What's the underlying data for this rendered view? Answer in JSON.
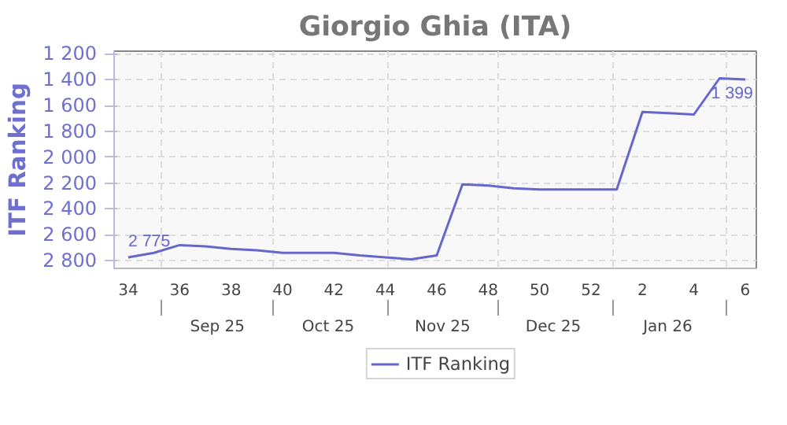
{
  "chart_data": {
    "type": "line",
    "title": "Giorgio Ghia (ITA)",
    "ylabel": "ITF Ranking",
    "categories": [
      "34",
      null,
      "36",
      null,
      "38",
      null,
      "40",
      null,
      "42",
      null,
      "44",
      null,
      "46",
      null,
      "48",
      null,
      "50",
      null,
      "52",
      null,
      "2",
      null,
      "4",
      null,
      "6"
    ],
    "series": [
      {
        "name": "ITF Ranking",
        "color": "#6666cc",
        "values": [
          2775,
          2740,
          2680,
          2690,
          2710,
          2720,
          2740,
          2740,
          2740,
          2760,
          2775,
          2790,
          2760,
          2210,
          2220,
          2240,
          2250,
          2250,
          2250,
          2250,
          1650,
          1660,
          1670,
          1390,
          1399
        ],
        "value_labels": [
          "2 775",
          null,
          null,
          null,
          null,
          null,
          null,
          null,
          null,
          null,
          null,
          null,
          null,
          null,
          null,
          null,
          null,
          null,
          null,
          null,
          null,
          null,
          null,
          null,
          "1 399"
        ]
      }
    ],
    "x2lim": [
      "2025-08-19",
      "2026-02-09"
    ],
    "x2ticks": [
      {
        "value": "2025-09-01",
        "label": null
      },
      {
        "value": "2025-09-16",
        "label": "Sep 25"
      },
      {
        "value": "2025-10-01",
        "label": null
      },
      {
        "value": "2025-10-16",
        "label": "Oct 25"
      },
      {
        "value": "2025-11-01",
        "label": null
      },
      {
        "value": "2025-11-16",
        "label": "Nov 25"
      },
      {
        "value": "2025-12-01",
        "label": null
      },
      {
        "value": "2025-12-16",
        "label": "Dec 25"
      },
      {
        "value": "2026-01-01",
        "label": null
      },
      {
        "value": "2026-01-16",
        "label": "Jan 26"
      },
      {
        "value": "2026-02-01",
        "label": null
      }
    ],
    "ylim": [
      2860,
      1180
    ],
    "yticks": [
      {
        "value": 1200,
        "label": "1 200"
      },
      {
        "value": 1400,
        "label": "1 400"
      },
      {
        "value": 1600,
        "label": "1 600"
      },
      {
        "value": 1800,
        "label": "1 800"
      },
      {
        "value": 2000,
        "label": "2 000"
      },
      {
        "value": 2200,
        "label": "2 200"
      },
      {
        "value": 2400,
        "label": "2 400"
      },
      {
        "value": 2600,
        "label": "2 600"
      },
      {
        "value": 2800,
        "label": "2 800"
      }
    ],
    "grid": true,
    "legend": "bottom",
    "line_style": "solid"
  }
}
